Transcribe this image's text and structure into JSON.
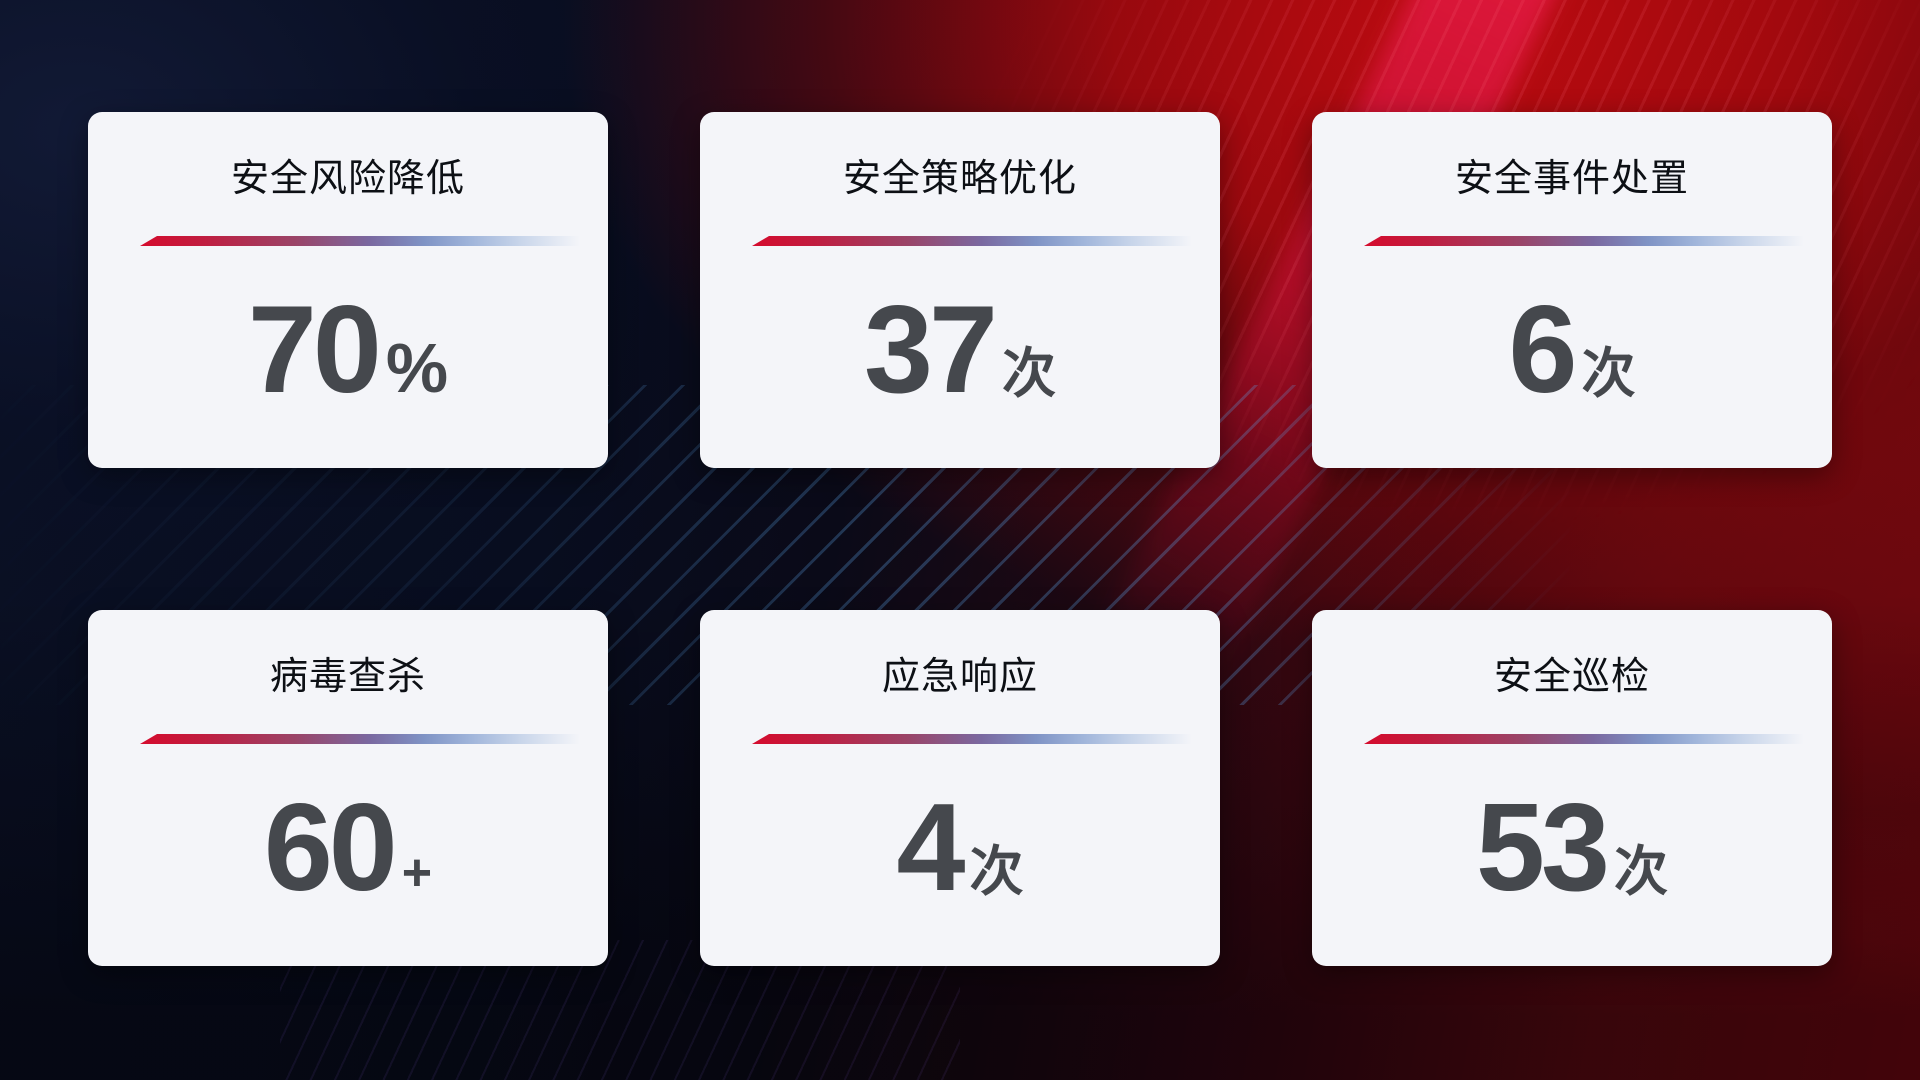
{
  "dashboard": {
    "cards": [
      {
        "title": "安全风险降低",
        "value": "70",
        "unit": "%"
      },
      {
        "title": "安全策略优化",
        "value": "37",
        "unit": "次"
      },
      {
        "title": "安全事件处置",
        "value": "6",
        "unit": "次"
      },
      {
        "title": "病毒查杀",
        "value": "60",
        "unit": "+"
      },
      {
        "title": "应急响应",
        "value": "4",
        "unit": "次"
      },
      {
        "title": "安全巡检",
        "value": "53",
        "unit": "次"
      }
    ],
    "colors": {
      "card_background": "#f4f5f9",
      "title_text": "#0d1015",
      "value_text": "#45484d",
      "divider_gradient_start": "#d50b2d",
      "divider_gradient_mid": "#7a68a0",
      "divider_gradient_end": "#9fb4da",
      "background_navy": "#0a1024",
      "background_red": "#b00c11"
    }
  }
}
